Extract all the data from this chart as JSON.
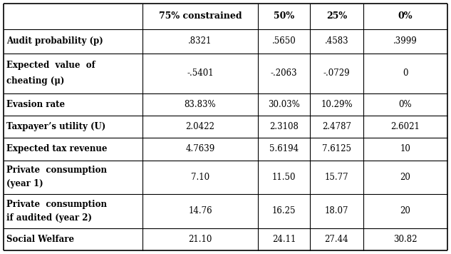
{
  "col_headers": [
    "",
    "75% constrained",
    "50%",
    "25%",
    "0%"
  ],
  "rows": [
    {
      "label_lines": [
        "Audit probability (p)"
      ],
      "values": [
        ".8321",
        ".5650",
        ".4583",
        ".3999"
      ]
    },
    {
      "label_lines": [
        "Expected  value  of",
        "cheating (μ)"
      ],
      "values": [
        "-.5401",
        "-.2063",
        "-.0729",
        "0"
      ]
    },
    {
      "label_lines": [
        "Evasion rate"
      ],
      "values": [
        "83.83%",
        "30.03%",
        "10.29%",
        "0%"
      ]
    },
    {
      "label_lines": [
        "Taxpayer’s utility (U)"
      ],
      "values": [
        "2.0422",
        "2.3108",
        "2.4787",
        "2.6021"
      ]
    },
    {
      "label_lines": [
        "Expected tax revenue"
      ],
      "values": [
        "4.7639",
        "5.6194",
        "7.6125",
        "10"
      ]
    },
    {
      "label_lines": [
        "Private  consumption",
        "(year 1)"
      ],
      "values": [
        "7.10",
        "11.50",
        "15.77",
        "20"
      ]
    },
    {
      "label_lines": [
        "Private  consumption",
        "if audited (year 2)"
      ],
      "values": [
        "14.76",
        "16.25",
        "18.07",
        "20"
      ]
    },
    {
      "label_lines": [
        "Social Welfare"
      ],
      "values": [
        "21.10",
        "24.11",
        "27.44",
        "30.82"
      ]
    }
  ],
  "bg_color": "#ffffff",
  "line_color": "#000000",
  "text_color": "#000000",
  "font_size": 8.5,
  "header_font_size": 9.0
}
